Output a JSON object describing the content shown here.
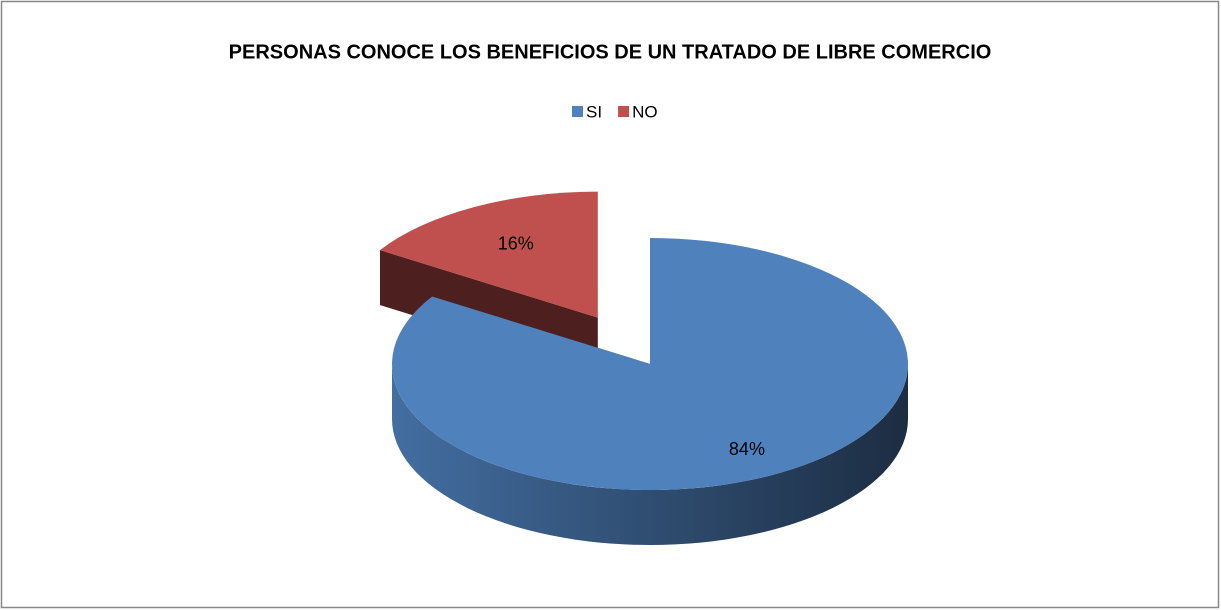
{
  "chart_data": {
    "type": "pie3d",
    "title": "PERSONAS CONOCE LOS BENEFICIOS DE UN TRATADO DE LIBRE COMERCIO",
    "categories": [
      "SI",
      "NO"
    ],
    "values": [
      84,
      16
    ],
    "value_labels": [
      "84%",
      "16%"
    ],
    "colors": [
      "#4f81bd",
      "#c0504d"
    ],
    "legend": "top"
  }
}
